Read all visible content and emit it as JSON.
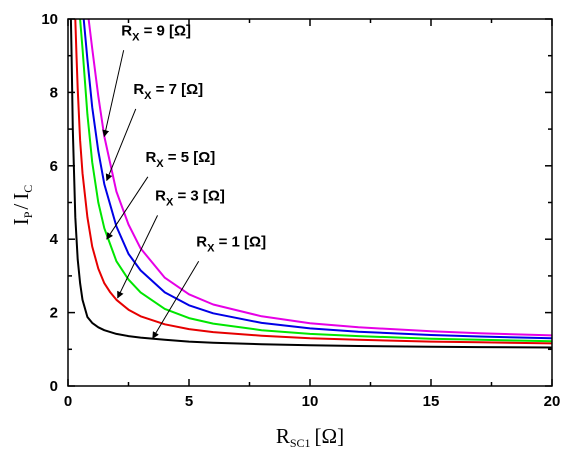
{
  "chart_data": {
    "type": "line",
    "title": "",
    "xlabel": {
      "main": "R",
      "sub": "SC1",
      "unit": "[Ω]"
    },
    "ylabel": {
      "main1": "I",
      "sub1": "P",
      "slash": "/",
      "main2": "I",
      "sub2": "C"
    },
    "xlim": [
      0,
      20
    ],
    "ylim": [
      0,
      10
    ],
    "xticks": [
      0,
      5,
      10,
      15,
      20
    ],
    "yticks": [
      0,
      2,
      4,
      6,
      8,
      10
    ],
    "grid": false,
    "legend": "none",
    "series": [
      {
        "name": "R_X = 1 [Ω]",
        "color": "#000000",
        "x": [
          0.12,
          0.15,
          0.2,
          0.3,
          0.4,
          0.5,
          0.6,
          0.8,
          1,
          1.25,
          1.5,
          2,
          2.5,
          3,
          4,
          5,
          6,
          8,
          10,
          12,
          15,
          17,
          20
        ],
        "y": [
          10,
          9.0,
          7.0,
          4.6,
          3.45,
          2.8,
          2.35,
          1.88,
          1.72,
          1.6,
          1.52,
          1.42,
          1.36,
          1.32,
          1.26,
          1.21,
          1.18,
          1.14,
          1.11,
          1.09,
          1.07,
          1.06,
          1.05
        ]
      },
      {
        "name": "R_X = 3 [Ω]",
        "color": "#e60000",
        "x": [
          0.3,
          0.35,
          0.4,
          0.5,
          0.6,
          0.8,
          1,
          1.25,
          1.5,
          1.75,
          2,
          2.5,
          3,
          4,
          5,
          6,
          8,
          10,
          12,
          15,
          17,
          20
        ],
        "y": [
          10,
          9.0,
          8.1,
          6.7,
          5.8,
          4.6,
          3.8,
          3.2,
          2.8,
          2.55,
          2.35,
          2.08,
          1.9,
          1.68,
          1.55,
          1.47,
          1.37,
          1.3,
          1.26,
          1.21,
          1.19,
          1.16
        ]
      },
      {
        "name": "R_X = 5 [Ω]",
        "color": "#00e600",
        "x": [
          0.5,
          0.6,
          0.8,
          1,
          1.25,
          1.5,
          2,
          2.5,
          3,
          4,
          5,
          6,
          8,
          10,
          12,
          15,
          17,
          20
        ],
        "y": [
          10,
          9.2,
          7.4,
          6.1,
          5.0,
          4.3,
          3.4,
          2.9,
          2.55,
          2.1,
          1.85,
          1.7,
          1.52,
          1.42,
          1.36,
          1.29,
          1.26,
          1.22
        ]
      },
      {
        "name": "R_X = 7 [Ω]",
        "color": "#0000e6",
        "x": [
          0.65,
          0.8,
          1,
          1.25,
          1.5,
          2,
          2.5,
          3,
          4,
          5,
          6,
          8,
          10,
          12,
          15,
          17,
          20
        ],
        "y": [
          10,
          8.9,
          7.6,
          6.4,
          5.5,
          4.35,
          3.6,
          3.15,
          2.55,
          2.2,
          1.98,
          1.72,
          1.57,
          1.48,
          1.39,
          1.35,
          1.3
        ]
      },
      {
        "name": "R_X = 9 [Ω]",
        "color": "#e600e6",
        "x": [
          0.85,
          1,
          1.25,
          1.5,
          2,
          2.5,
          3,
          4,
          5,
          6,
          8,
          10,
          12,
          15,
          17,
          20
        ],
        "y": [
          10,
          9.2,
          7.9,
          6.8,
          5.3,
          4.4,
          3.75,
          2.95,
          2.5,
          2.22,
          1.9,
          1.71,
          1.6,
          1.49,
          1.44,
          1.38
        ]
      }
    ],
    "annotations": [
      {
        "label_main": "R",
        "label_sub": "X",
        "label_rest": " = 9 [Ω]",
        "text_at": [
          2.2,
          9.55
        ],
        "line_from": [
          2.3,
          9.15
        ],
        "arrow_to": [
          1.5,
          6.8
        ]
      },
      {
        "label_main": "R",
        "label_sub": "X",
        "label_rest": " = 7 [Ω]",
        "text_at": [
          2.7,
          7.95
        ],
        "line_from": [
          2.8,
          7.55
        ],
        "arrow_to": [
          1.6,
          5.6
        ]
      },
      {
        "label_main": "R",
        "label_sub": "X",
        "label_rest": " = 5 [Ω]",
        "text_at": [
          3.2,
          6.1
        ],
        "line_from": [
          3.3,
          5.7
        ],
        "arrow_to": [
          1.6,
          4.0
        ]
      },
      {
        "label_main": "R",
        "label_sub": "X",
        "label_rest": " = 3 [Ω]",
        "text_at": [
          3.6,
          5.05
        ],
        "line_from": [
          3.7,
          4.65
        ],
        "arrow_to": [
          2.05,
          2.4
        ]
      },
      {
        "label_main": "R",
        "label_sub": "X",
        "label_rest": " = 1 [Ω]",
        "text_at": [
          5.3,
          3.8
        ],
        "line_from": [
          5.4,
          3.4
        ],
        "arrow_to": [
          3.5,
          1.3
        ]
      }
    ]
  }
}
